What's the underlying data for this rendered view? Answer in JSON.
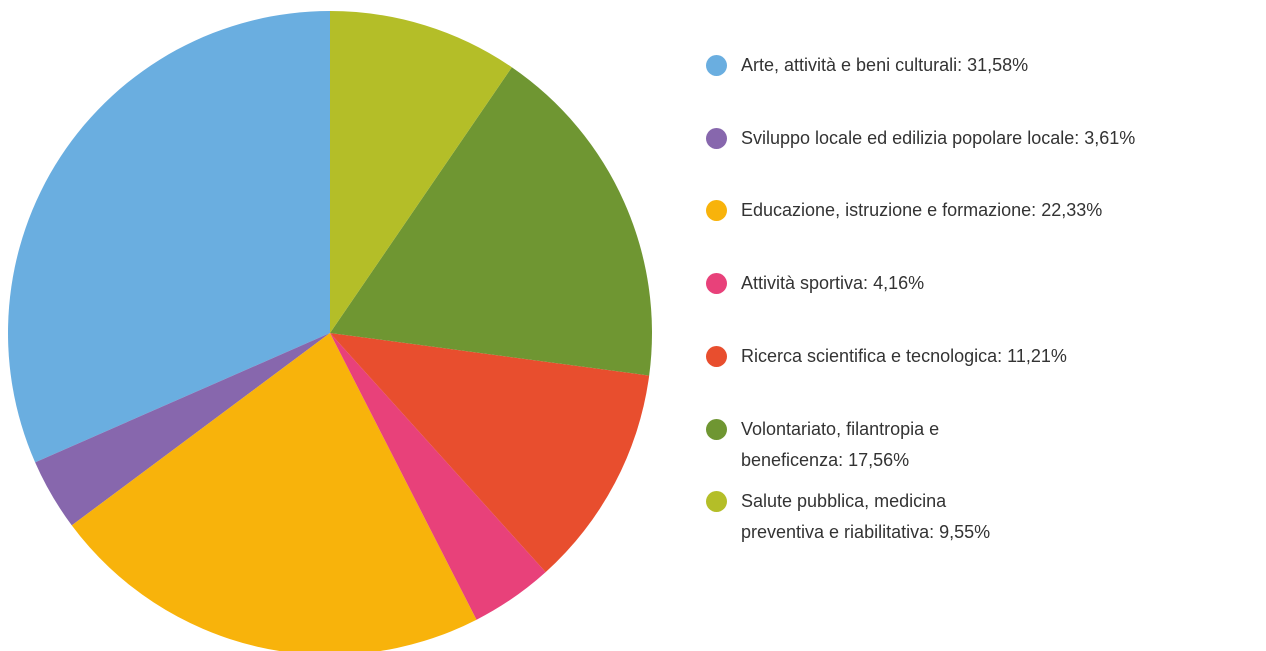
{
  "chart_data": {
    "type": "pie",
    "categories": [
      "Arte, attività e beni culturali:",
      "Sviluppo locale ed edilizia popolare locale:",
      "Educazione, istruzione e formazione:",
      "Attività sportiva:",
      "Ricerca scientifica e tecnologica:",
      "Volontariato, filantropia e beneficenza:",
      "Salute pubblica, medicina preventiva e riabilitativa:"
    ],
    "values": [
      31.58,
      3.61,
      22.33,
      4.16,
      11.21,
      17.56,
      9.55
    ],
    "value_labels": [
      "31,58%",
      "3,61%",
      "22,33%",
      "4,16%",
      "11,21%",
      "17,56%",
      "9,55%"
    ],
    "colors": [
      "#6aaee0",
      "#8767ad",
      "#f8b30b",
      "#e8417a",
      "#e84e2e",
      "#6f9632",
      "#b4be28"
    ],
    "direction": "counterclockwise",
    "start": "top"
  }
}
